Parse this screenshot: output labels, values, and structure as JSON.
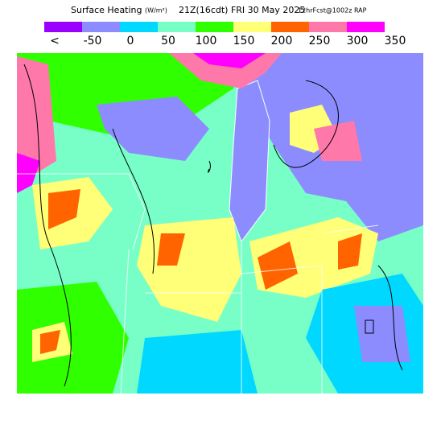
{
  "header": {
    "title": "Surface Heating",
    "units": "(W/m²)",
    "time": "21Z(16cdt) FRI 30 May 2025",
    "forecast": "12hrFcst@1002z RAP"
  },
  "legend": {
    "labels": [
      "<",
      "-50",
      "0",
      "50",
      "100",
      "150",
      "200",
      "250",
      "300",
      "350"
    ],
    "colors": [
      "#9a00ff",
      "#8c8cff",
      "#00d8ff",
      "#78ffc8",
      "#30ff00",
      "#ffff78",
      "#ff6400",
      "#ff78aa",
      "#ff00ff"
    ]
  }
}
